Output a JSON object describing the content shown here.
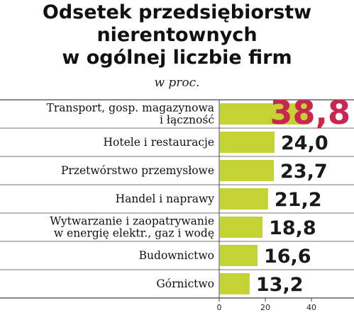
{
  "title_lines": [
    "Odsetek przedsiębiorstw",
    "nierentownych",
    "w ogólnej liczbie firm"
  ],
  "subtitle": "w proc.",
  "colors": {
    "bar": "#c4d334",
    "highlight_value": "#c8284f",
    "divider": "#444444"
  },
  "chart_data": {
    "type": "bar",
    "orientation": "horizontal",
    "title": "Odsetek przedsiębiorstw nierentownych w ogólnej liczbie firm",
    "subtitle": "w proc.",
    "categories": [
      [
        "Transport, gosp. magazynowa",
        "i łączność"
      ],
      [
        "Hotele i restauracje"
      ],
      [
        "Przetwórstwo przemysłowe"
      ],
      [
        "Handel i naprawy"
      ],
      [
        "Wytwarzanie i zaopatrywanie",
        "w energię elektr., gaz i wodę"
      ],
      [
        "Budownictwo"
      ],
      [
        "Górnictwo"
      ]
    ],
    "values": [
      38.8,
      24.0,
      23.7,
      21.2,
      18.8,
      16.6,
      13.2
    ],
    "value_labels": [
      "38,8",
      "24,0",
      "23,7",
      "21,2",
      "18,8",
      "16,6",
      "13,2"
    ],
    "highlight_index": 0,
    "xlim": [
      0,
      40
    ],
    "xticks": [
      0,
      20,
      40
    ],
    "xtick_labels": [
      "0",
      "20",
      "40"
    ],
    "xlabel": "",
    "ylabel": "",
    "grid": false,
    "legend": "none"
  }
}
